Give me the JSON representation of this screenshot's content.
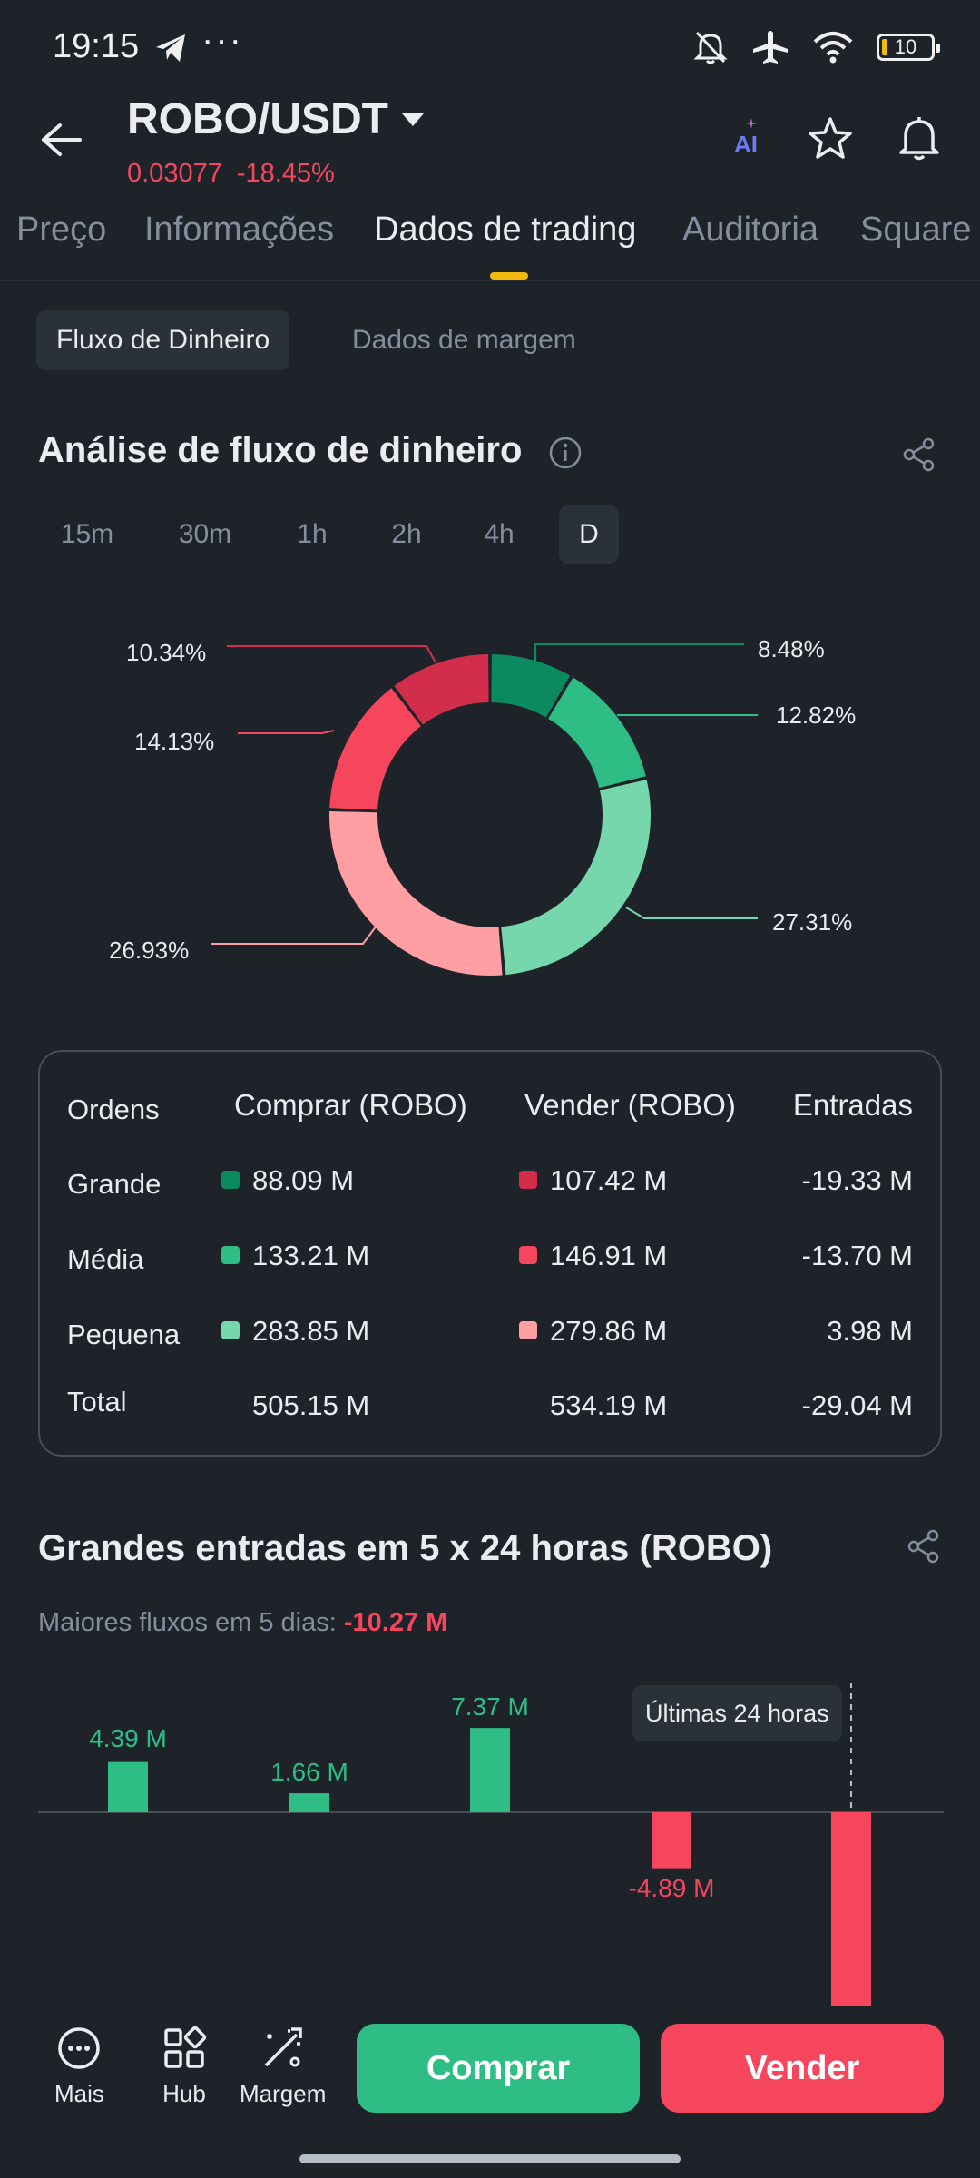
{
  "status_bar": {
    "time": "19:15",
    "dots": "···",
    "battery": "10"
  },
  "header": {
    "pair": "ROBO/USDT",
    "price": "0.03077",
    "change": "-18.45%",
    "ai_label": "AI"
  },
  "tabs": [
    "Preço",
    "Informações",
    "Dados de trading",
    "Auditoria",
    "Square"
  ],
  "active_tab": "Dados de trading",
  "subtabs": [
    "Fluxo de Dinheiro",
    "Dados de margem"
  ],
  "money_flow": {
    "title": "Análise de fluxo de dinheiro",
    "intervals": [
      "15m",
      "30m",
      "1h",
      "2h",
      "4h",
      "D"
    ],
    "active_interval": "D"
  },
  "chart_data": [
    {
      "type": "pie",
      "style": "donut",
      "slices": [
        {
          "label": "Comprar Grande",
          "value": 8.48,
          "display": "8.48%",
          "color": "#0b8a5f"
        },
        {
          "label": "Comprar Média",
          "value": 12.82,
          "display": "12.82%",
          "color": "#2ebd85"
        },
        {
          "label": "Comprar Pequena",
          "value": 27.31,
          "display": "27.31%",
          "color": "#76d7ad"
        },
        {
          "label": "Vender Pequena",
          "value": 26.93,
          "display": "26.93%",
          "color": "#ff9ea3"
        },
        {
          "label": "Vender Média",
          "value": 14.13,
          "display": "14.13%",
          "color": "#f6465d"
        },
        {
          "label": "Vender Grande",
          "value": 10.34,
          "display": "10.34%",
          "color": "#d22e4c"
        }
      ]
    },
    {
      "type": "bar",
      "title": "Grandes entradas em 5 x 24 horas (ROBO)",
      "values": [
        4.39,
        1.66,
        7.37,
        -4.89,
        -18.8
      ],
      "labels": [
        "4.39 M",
        "1.66 M",
        "7.37 M",
        "-4.89 M",
        ""
      ],
      "positive_color": "#2ebd85",
      "negative_color": "#f6465d",
      "tooltip": "Últimas 24 horas"
    }
  ],
  "flow_table": {
    "headers": [
      "Ordens",
      "Comprar (ROBO)",
      "Vender (ROBO)",
      "Entradas"
    ],
    "rows": [
      {
        "name": "Grande",
        "buy": "88.09 M",
        "sell": "107.42 M",
        "net": "-19.33 M",
        "buy_color": "#0b8a5f",
        "sell_color": "#d22e4c"
      },
      {
        "name": "Média",
        "buy": "133.21 M",
        "sell": "146.91 M",
        "net": "-13.70 M",
        "buy_color": "#2ebd85",
        "sell_color": "#f6465d"
      },
      {
        "name": "Pequena",
        "buy": "283.85 M",
        "sell": "279.86 M",
        "net": "3.98 M",
        "buy_color": "#76d7ad",
        "sell_color": "#ff9ea3"
      }
    ],
    "total": {
      "name": "Total",
      "buy": "505.15 M",
      "sell": "534.19 M",
      "net": "-29.04 M"
    }
  },
  "large_inflow": {
    "title": "Grandes entradas em 5 x 24 horas (ROBO)",
    "summary_label": "Maiores fluxos em 5 dias:",
    "summary_value": "-10.27 M"
  },
  "bottom_nav": {
    "items": [
      "Mais",
      "Hub",
      "Margem"
    ],
    "buy": "Comprar",
    "sell": "Vender",
    "buy_color": "#2ebd85",
    "sell_color": "#f6465d"
  }
}
